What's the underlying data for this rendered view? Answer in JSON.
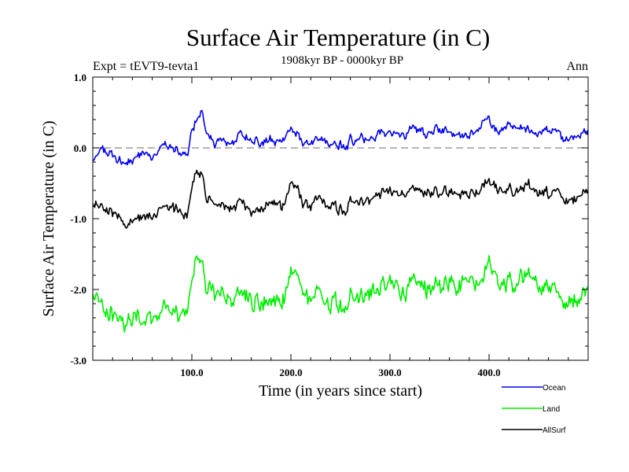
{
  "chart_data": {
    "type": "line",
    "title": "Surface Air Temperature (in C)",
    "subtitle": "1908kyr BP - 0000kyr BP",
    "experiment_label": "Expt = tEVT9-tevta1",
    "season_label": "Ann",
    "xlabel": "Time (in years since start)",
    "ylabel": "Surface Air Temperature (in C)",
    "xlim": [
      0,
      500
    ],
    "ylim": [
      -3.0,
      1.0
    ],
    "x_ticks": [
      100,
      200,
      300,
      400
    ],
    "x_tick_labels": [
      "100.0",
      "200.0",
      "300.0",
      "400.0"
    ],
    "y_ticks": [
      -3.0,
      -2.0,
      -1.0,
      0.0,
      1.0
    ],
    "y_tick_labels": [
      "-3.0",
      "-2.0",
      "-1.0",
      "0.0",
      "1.0"
    ],
    "reference_line": {
      "y": 0.0,
      "style": "dashed",
      "color": "#888888"
    },
    "legend_position": "bottom-right",
    "x": [
      0,
      10,
      20,
      30,
      40,
      50,
      60,
      70,
      80,
      90,
      95,
      100,
      105,
      110,
      115,
      120,
      130,
      140,
      150,
      160,
      170,
      180,
      190,
      200,
      205,
      210,
      220,
      230,
      240,
      250,
      255,
      260,
      270,
      280,
      290,
      300,
      310,
      320,
      330,
      340,
      350,
      360,
      370,
      380,
      390,
      395,
      400,
      405,
      410,
      420,
      430,
      440,
      450,
      460,
      470,
      480,
      490,
      500
    ],
    "series": [
      {
        "name": "Ocean",
        "color": "#0000ee",
        "values": [
          -0.15,
          -0.05,
          -0.1,
          -0.22,
          -0.2,
          -0.08,
          -0.1,
          0.05,
          0.0,
          -0.12,
          -0.15,
          0.2,
          0.4,
          0.5,
          0.2,
          0.05,
          0.1,
          0.08,
          0.18,
          0.12,
          0.08,
          0.1,
          0.05,
          0.3,
          0.22,
          0.1,
          0.08,
          0.1,
          0.05,
          0.05,
          -0.05,
          0.12,
          0.15,
          0.15,
          0.22,
          0.2,
          0.2,
          0.22,
          0.25,
          0.2,
          0.25,
          0.25,
          0.22,
          0.2,
          0.3,
          0.45,
          0.35,
          0.25,
          0.25,
          0.3,
          0.28,
          0.2,
          0.25,
          0.25,
          0.22,
          0.08,
          0.2,
          0.25
        ]
      },
      {
        "name": "Land",
        "color": "#00ee00",
        "values": [
          -2.1,
          -2.3,
          -2.35,
          -2.5,
          -2.4,
          -2.4,
          -2.35,
          -2.25,
          -2.35,
          -2.35,
          -2.4,
          -1.9,
          -1.5,
          -1.65,
          -1.95,
          -2.1,
          -2.05,
          -2.15,
          -2.0,
          -2.1,
          -2.2,
          -2.15,
          -2.2,
          -1.75,
          -1.8,
          -2.0,
          -2.15,
          -2.1,
          -2.2,
          -2.2,
          -2.35,
          -2.1,
          -2.0,
          -2.05,
          -2.0,
          -1.95,
          -2.05,
          -1.95,
          -1.9,
          -2.0,
          -1.95,
          -1.85,
          -1.9,
          -1.85,
          -1.9,
          -1.75,
          -1.65,
          -1.75,
          -1.95,
          -1.9,
          -1.9,
          -1.85,
          -1.95,
          -1.95,
          -2.05,
          -2.25,
          -2.1,
          -1.9
        ]
      },
      {
        "name": "AllSurf",
        "color": "#000000",
        "values": [
          -0.85,
          -0.85,
          -0.9,
          -1.05,
          -1.05,
          -0.95,
          -0.95,
          -0.8,
          -0.85,
          -0.95,
          -1.0,
          -0.6,
          -0.3,
          -0.4,
          -0.7,
          -0.8,
          -0.8,
          -0.85,
          -0.75,
          -0.85,
          -0.85,
          -0.8,
          -0.85,
          -0.5,
          -0.55,
          -0.75,
          -0.8,
          -0.75,
          -0.85,
          -0.85,
          -0.95,
          -0.75,
          -0.7,
          -0.72,
          -0.65,
          -0.65,
          -0.65,
          -0.65,
          -0.6,
          -0.65,
          -0.65,
          -0.6,
          -0.62,
          -0.62,
          -0.6,
          -0.45,
          -0.45,
          -0.55,
          -0.6,
          -0.6,
          -0.62,
          -0.55,
          -0.6,
          -0.65,
          -0.65,
          -0.8,
          -0.65,
          -0.55
        ]
      }
    ]
  }
}
